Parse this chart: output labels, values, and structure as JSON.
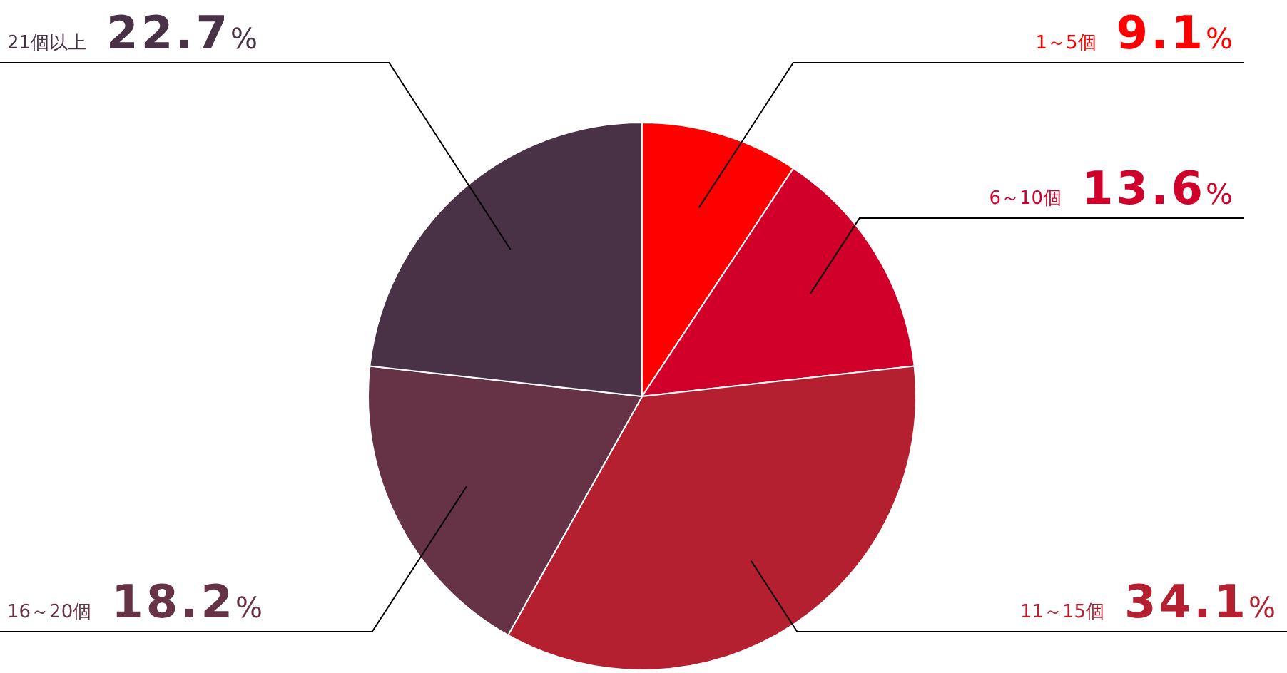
{
  "chart_data": {
    "type": "pie",
    "categories": [
      "1～5個",
      "6～10個",
      "11～15個",
      "16～20個",
      "21個以上"
    ],
    "values": [
      9.1,
      13.6,
      34.1,
      18.2,
      22.7
    ],
    "value_labels": [
      "9.1%",
      "13.6%",
      "34.1%",
      "18.2%",
      "22.7%"
    ],
    "colors": [
      "#ff0000",
      "#d0002a",
      "#b52030",
      "#653345",
      "#4a3246"
    ]
  }
}
